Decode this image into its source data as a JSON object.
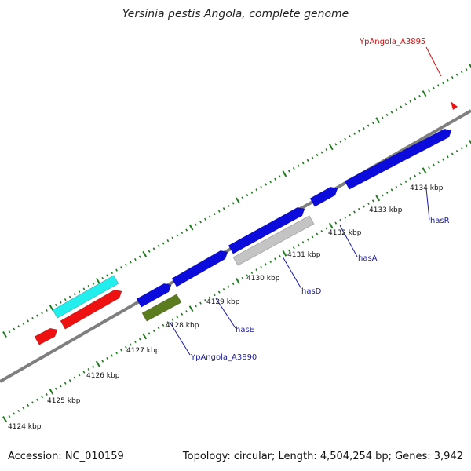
{
  "title": "Yersinia pestis Angola, complete genome",
  "accession": "Accession: NC_010159",
  "topology": "Topology: circular; Length: 4,504,254 bp; Genes: 3,942",
  "colors": {
    "backbone": "#7f7f7f",
    "tick": "#1f7a1f",
    "gene_blue": "#0b0bdc",
    "gene_red": "#ee1111",
    "gene_cyan": "#22eeee",
    "gene_olive": "#5b7d1f",
    "gene_gray": "#c4c4c4",
    "label_blue": "#1a1aa8",
    "label_red": "#d01010"
  },
  "kbp_labels": [
    "4124 kbp",
    "4125 kbp",
    "4126 kbp",
    "4127 kbp",
    "4128 kbp",
    "4129 kbp",
    "4130 kbp",
    "4131 kbp",
    "4132 kbp",
    "4133 kbp",
    "4134 kbp"
  ],
  "gene_labels": [
    {
      "text": "hasR",
      "color": "blue"
    },
    {
      "text": "hasA",
      "color": "blue"
    },
    {
      "text": "hasD",
      "color": "blue"
    },
    {
      "text": "hasE",
      "color": "blue"
    },
    {
      "text": "YpAngola_A3890",
      "color": "blue"
    },
    {
      "text": "YpAngola_A3895",
      "color": "red"
    }
  ]
}
